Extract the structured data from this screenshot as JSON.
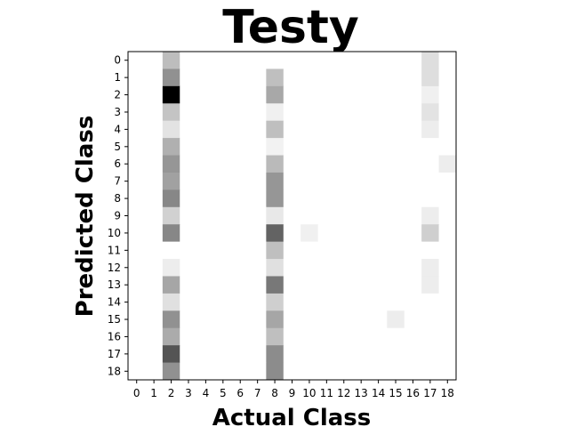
{
  "chart_data": {
    "type": "heatmap",
    "title": "Testy",
    "xlabel": "Actual Class",
    "ylabel": "Predicted Class",
    "x_ticks": [
      "0",
      "1",
      "2",
      "3",
      "4",
      "5",
      "6",
      "7",
      "8",
      "9",
      "10",
      "11",
      "12",
      "13",
      "14",
      "15",
      "16",
      "17",
      "18"
    ],
    "y_ticks": [
      "0",
      "1",
      "2",
      "3",
      "4",
      "5",
      "6",
      "7",
      "8",
      "9",
      "10",
      "11",
      "12",
      "13",
      "14",
      "15",
      "16",
      "17",
      "18"
    ],
    "colormap": "gray_r",
    "matrix": [
      [
        0,
        0,
        0.26,
        0,
        0,
        0,
        0,
        0,
        0,
        0,
        0,
        0,
        0,
        0,
        0,
        0,
        0,
        0.13,
        0
      ],
      [
        0,
        0,
        0.43,
        0,
        0,
        0,
        0,
        0,
        0.25,
        0,
        0,
        0,
        0,
        0,
        0,
        0,
        0,
        0.13,
        0
      ],
      [
        0,
        0,
        1.0,
        0,
        0,
        0,
        0,
        0,
        0.34,
        0,
        0,
        0,
        0,
        0,
        0,
        0,
        0,
        0.06,
        0
      ],
      [
        0,
        0,
        0.23,
        0,
        0,
        0,
        0,
        0,
        0.06,
        0,
        0,
        0,
        0,
        0,
        0,
        0,
        0,
        0.11,
        0
      ],
      [
        0,
        0,
        0.11,
        0,
        0,
        0,
        0,
        0,
        0.25,
        0,
        0,
        0,
        0,
        0,
        0,
        0,
        0,
        0.07,
        0
      ],
      [
        0,
        0,
        0.31,
        0,
        0,
        0,
        0,
        0,
        0.05,
        0,
        0,
        0,
        0,
        0,
        0,
        0,
        0,
        0,
        0
      ],
      [
        0,
        0,
        0.41,
        0,
        0,
        0,
        0,
        0,
        0.27,
        0,
        0,
        0,
        0,
        0,
        0,
        0,
        0,
        0,
        0.07
      ],
      [
        0,
        0,
        0.37,
        0,
        0,
        0,
        0,
        0,
        0.41,
        0,
        0,
        0,
        0,
        0,
        0,
        0,
        0,
        0,
        0
      ],
      [
        0,
        0,
        0.47,
        0,
        0,
        0,
        0,
        0,
        0.41,
        0,
        0,
        0,
        0,
        0,
        0,
        0,
        0,
        0,
        0
      ],
      [
        0,
        0,
        0.18,
        0,
        0,
        0,
        0,
        0,
        0.09,
        0,
        0,
        0,
        0,
        0,
        0,
        0,
        0,
        0.07,
        0
      ],
      [
        0,
        0,
        0.47,
        0,
        0,
        0,
        0,
        0,
        0.61,
        0,
        0.06,
        0,
        0,
        0,
        0,
        0,
        0,
        0.19,
        0
      ],
      [
        0,
        0,
        0,
        0,
        0,
        0,
        0,
        0,
        0.25,
        0,
        0,
        0,
        0,
        0,
        0,
        0,
        0,
        0,
        0
      ],
      [
        0,
        0,
        0.07,
        0,
        0,
        0,
        0,
        0,
        0.12,
        0,
        0,
        0,
        0,
        0,
        0,
        0,
        0,
        0.07,
        0
      ],
      [
        0,
        0,
        0.35,
        0,
        0,
        0,
        0,
        0,
        0.53,
        0,
        0,
        0,
        0,
        0,
        0,
        0,
        0,
        0.07,
        0
      ],
      [
        0,
        0,
        0.12,
        0,
        0,
        0,
        0,
        0,
        0.19,
        0,
        0,
        0,
        0,
        0,
        0,
        0,
        0,
        0,
        0
      ],
      [
        0,
        0,
        0.43,
        0,
        0,
        0,
        0,
        0,
        0.35,
        0,
        0,
        0,
        0,
        0,
        0,
        0.07,
        0,
        0,
        0
      ],
      [
        0,
        0,
        0.33,
        0,
        0,
        0,
        0,
        0,
        0.25,
        0,
        0,
        0,
        0,
        0,
        0,
        0,
        0,
        0,
        0
      ],
      [
        0,
        0,
        0.67,
        0,
        0,
        0,
        0,
        0,
        0.45,
        0,
        0,
        0,
        0,
        0,
        0,
        0,
        0,
        0,
        0
      ],
      [
        0,
        0,
        0.43,
        0,
        0,
        0,
        0,
        0,
        0.45,
        0,
        0,
        0,
        0,
        0,
        0,
        0,
        0,
        0,
        0
      ]
    ]
  }
}
